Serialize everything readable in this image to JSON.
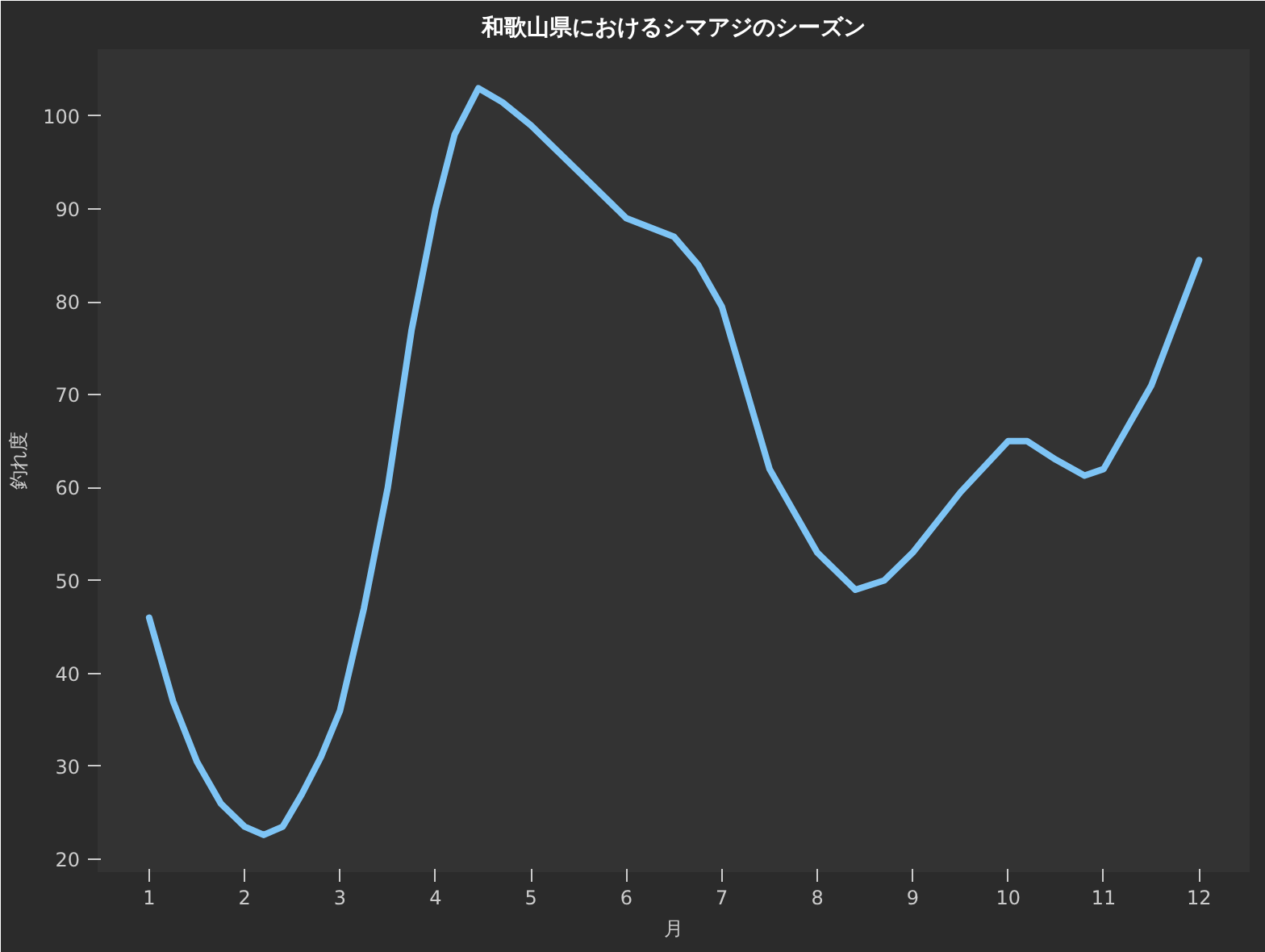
{
  "chart_data": {
    "type": "line",
    "title": "和歌山県におけるシマアジのシーズン",
    "xlabel": "月",
    "ylabel": "釣れ度",
    "x": [
      1,
      1.25,
      1.5,
      1.75,
      2,
      2.2,
      2.4,
      2.6,
      2.8,
      3,
      3.25,
      3.5,
      3.75,
      4,
      4.2,
      4.45,
      4.7,
      5,
      5.5,
      6,
      6.5,
      6.75,
      7,
      7.5,
      8,
      8.4,
      8.7,
      9,
      9.5,
      10,
      10.2,
      10.5,
      10.8,
      11,
      11.5,
      12
    ],
    "series": [
      {
        "color": "#7ec4f5",
        "values": [
          46,
          37,
          30.5,
          26,
          23.5,
          22.6,
          23.5,
          27,
          31,
          36,
          47,
          60,
          77,
          90,
          98,
          103,
          101.5,
          99,
          94,
          89,
          87,
          84,
          79.5,
          62,
          53,
          49,
          50,
          53,
          59.5,
          65,
          65,
          63,
          61.3,
          62,
          71,
          84.5
        ]
      }
    ],
    "xlim": [
      0.46,
      12.53
    ],
    "ylim": [
      18.6,
      107.2
    ],
    "xticks": [
      1,
      2,
      3,
      4,
      5,
      6,
      7,
      8,
      9,
      10,
      11,
      12
    ],
    "yticks": [
      20,
      30,
      40,
      50,
      60,
      70,
      80,
      90,
      100
    ],
    "grid": false,
    "marker": "none",
    "line_style": "solid"
  }
}
